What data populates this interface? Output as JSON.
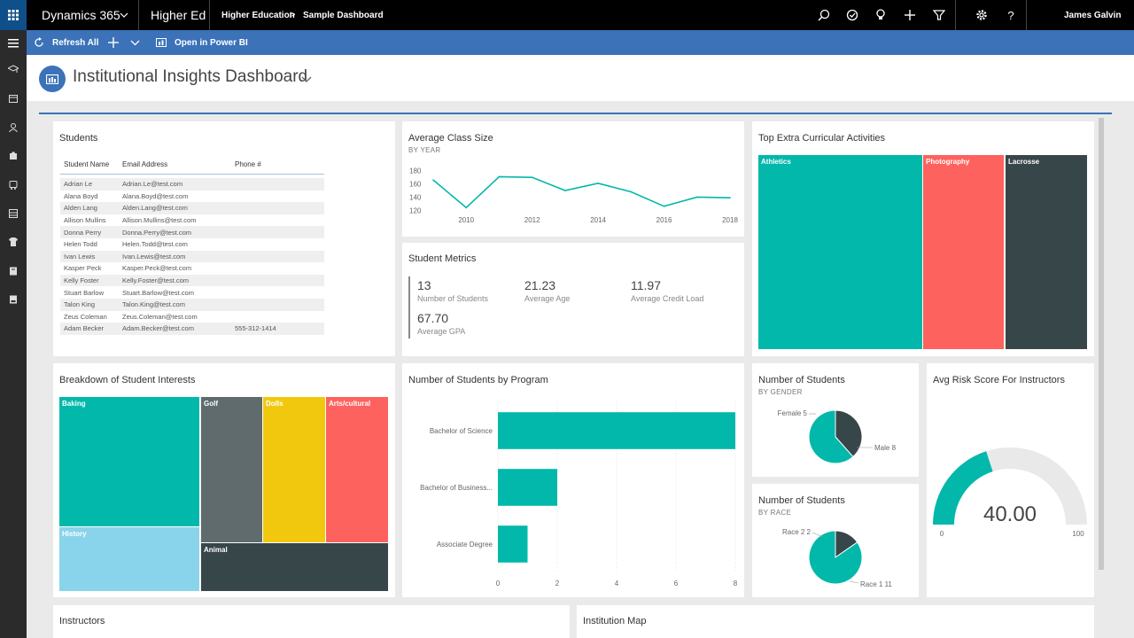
{
  "topbar": {
    "app_name": "Dynamics 365",
    "area": "Higher Ed",
    "breadcrumb": [
      "Higher Education",
      "Sample Dashboard"
    ],
    "breadcrumb_sep": ">",
    "user": "James Galvin",
    "icons": [
      "search-icon",
      "task-icon",
      "lightbulb-icon",
      "plus-icon",
      "filter-icon",
      "settings-icon",
      "help-icon"
    ]
  },
  "command_bar": {
    "refresh_label": "Refresh All",
    "open_powerbi_label": "Open in Power BI"
  },
  "header": {
    "title": "Institutional Insights Dashboard"
  },
  "students": {
    "title": "Students",
    "columns": [
      "Student Name",
      "Email Address",
      "Phone #"
    ],
    "rows": [
      [
        "Adrian Le",
        "Adrian.Le@test.com",
        ""
      ],
      [
        "Alana Boyd",
        "Alana.Boyd@test.com",
        ""
      ],
      [
        "Alden Lang",
        "Alden.Lang@test.com",
        ""
      ],
      [
        "Allison Mullins",
        "Allison.Mullins@test.com",
        ""
      ],
      [
        "Donna Perry",
        "Donna.Perry@test.com",
        ""
      ],
      [
        "Helen Todd",
        "Helen.Todd@test.com",
        ""
      ],
      [
        "Ivan Lewis",
        "Ivan.Lewis@test.com",
        ""
      ],
      [
        "Kasper Peck",
        "Kasper.Peck@test.com",
        ""
      ],
      [
        "Kelly Foster",
        "Kelly.Foster@test.com",
        ""
      ],
      [
        "Stuart Barlow",
        "Stuart.Barlow@test.com",
        ""
      ],
      [
        "Talon King",
        "Talon.King@test.com",
        ""
      ],
      [
        "Zeus Coleman",
        "Zeus.Coleman@test.com",
        ""
      ],
      [
        "Adam Becker",
        "Adam.Becker@test.com",
        "555-312-1414"
      ]
    ]
  },
  "class_size": {
    "title": "Average Class Size",
    "subtitle": "BY YEAR",
    "chart_data": {
      "type": "line",
      "x": [
        2009,
        2010,
        2011,
        2012,
        2013,
        2014,
        2015,
        2016,
        2017,
        2018
      ],
      "values": [
        166,
        124,
        171,
        170,
        150,
        161,
        148,
        126,
        140,
        139
      ],
      "xticks": [
        "2010",
        "2012",
        "2014",
        "2016",
        "2018"
      ],
      "yticks": [
        "120",
        "140",
        "160",
        "180"
      ],
      "ylim": [
        115,
        185
      ],
      "color": "#01b8aa"
    }
  },
  "metrics": {
    "title": "Student Metrics",
    "items": [
      {
        "value": "13",
        "label": "Number of Students"
      },
      {
        "value": "21.23",
        "label": "Average Age"
      },
      {
        "value": "11.97",
        "label": "Average Credit Load"
      },
      {
        "value": "67.70",
        "label": "Average GPA"
      }
    ]
  },
  "activities": {
    "title": "Top Extra Curricular Activities",
    "chart_data": {
      "type": "treemap",
      "items": [
        {
          "label": "Athletics",
          "color": "#01b8aa"
        },
        {
          "label": "Photography",
          "color": "#fd625e"
        },
        {
          "label": "Lacrosse",
          "color": "#374649"
        }
      ]
    }
  },
  "interests": {
    "title": "Breakdown of Student Interests",
    "chart_data": {
      "type": "treemap",
      "items": [
        {
          "label": "Baking",
          "color": "#01b8aa"
        },
        {
          "label": "History",
          "color": "#8ad4eb"
        },
        {
          "label": "Golf",
          "color": "#5f6b6d"
        },
        {
          "label": "Dolls",
          "color": "#f2c80f"
        },
        {
          "label": "Arts/cultural",
          "color": "#fd625e"
        },
        {
          "label": "Animal",
          "color": "#374649"
        }
      ]
    }
  },
  "by_program": {
    "title": "Number of Students by Program",
    "chart_data": {
      "type": "bar",
      "orientation": "horizontal",
      "categories": [
        "Bachelor of Science",
        "Bachelor of Business...",
        "Associate Degree"
      ],
      "values": [
        8,
        2,
        1
      ],
      "xticks": [
        "0",
        "2",
        "4",
        "6",
        "8"
      ],
      "xlim": [
        0,
        8
      ],
      "color": "#01b8aa"
    }
  },
  "gender": {
    "title": "Number of Students",
    "subtitle": "BY GENDER",
    "chart_data": {
      "type": "pie",
      "labels": [
        "Female 5",
        "Male 8"
      ],
      "values": [
        5,
        8
      ],
      "colors": [
        "#374649",
        "#01b8aa"
      ]
    }
  },
  "race": {
    "title": "Number of Students",
    "subtitle": "BY RACE",
    "chart_data": {
      "type": "pie",
      "labels": [
        "Race 2 2",
        "Race 1 11"
      ],
      "values": [
        2,
        11
      ],
      "colors": [
        "#374649",
        "#01b8aa"
      ]
    }
  },
  "risk": {
    "title": "Avg Risk Score For Instructors",
    "chart_data": {
      "type": "gauge",
      "value": 40,
      "value_label": "40.00",
      "min": 0,
      "max": 100,
      "min_label": "0",
      "max_label": "100",
      "color": "#01b8aa"
    }
  },
  "instructors": {
    "title": "Instructors"
  },
  "map": {
    "title": "Institution Map"
  }
}
